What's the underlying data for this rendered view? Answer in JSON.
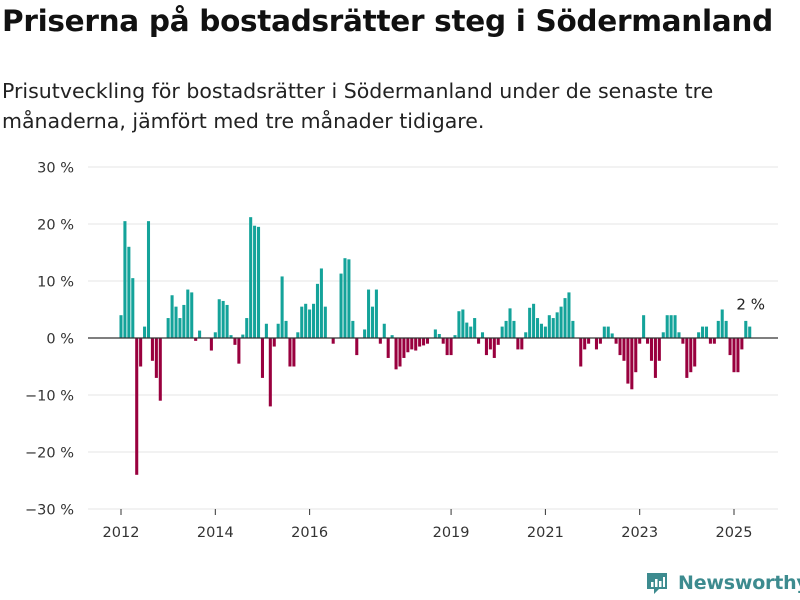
{
  "header": {
    "title": "Priserna på bostadsrätter steg i Södermanland",
    "subtitle": "Prisutveckling för bostadsrätter i Södermanland under de senaste tre månaderna, jämfört med tre månader tidigare."
  },
  "brand": {
    "name": "Newsworthy",
    "color": "#3d8b8f"
  },
  "colors": {
    "positive": "#14a39a",
    "negative": "#99003e",
    "grid": "#e6e6e6",
    "zero": "#333333"
  },
  "chart_data": {
    "type": "bar",
    "title": "",
    "xlabel": "",
    "ylabel": "",
    "ylim": [
      -30,
      30
    ],
    "y_ticks": [
      -30,
      -20,
      -10,
      0,
      10,
      20,
      30
    ],
    "y_tick_labels": [
      "−30 %",
      "−20 %",
      "−10 %",
      "0 %",
      "10 %",
      "20 %",
      "30 %"
    ],
    "x_ticks": [
      2012,
      2014,
      2016,
      2019,
      2021,
      2023,
      2025
    ],
    "x_tick_labels": [
      "2012",
      "2014",
      "2016",
      "2019",
      "2021",
      "2023",
      "2025"
    ],
    "grid": true,
    "annotation": {
      "text": "2 %",
      "value": 2
    },
    "series": [
      {
        "start": "2012-01",
        "frequency": "monthly",
        "values": [
          4.0,
          20.5,
          16.0,
          10.5,
          -24.0,
          -5.0,
          2.0,
          20.5,
          -4.0,
          -7.0,
          -11.0,
          0,
          3.5,
          7.5,
          5.5,
          3.5,
          5.8,
          8.5,
          8.0,
          -0.5,
          1.3,
          0,
          0,
          -2.2,
          1.0,
          6.8,
          6.5,
          5.8,
          0.5,
          -1.2,
          -4.5,
          0.6,
          3.5,
          21.2,
          19.7,
          19.5,
          -7.0,
          2.5,
          -12.0,
          -1.5,
          2.5,
          10.8,
          3.0,
          -5.0,
          -5.0,
          1.0,
          5.5,
          6.0,
          5.0,
          6.0,
          9.5,
          12.2,
          5.5,
          0,
          -1.0,
          0,
          11.3,
          14.0,
          13.8,
          3.0,
          -3.0,
          0,
          1.5,
          8.5,
          5.5,
          8.5,
          -1.0,
          2.5,
          -3.5,
          0.5,
          -5.5,
          -5.0,
          -3.5,
          -2.5,
          -2.0,
          -2.2,
          -1.5,
          -1.3,
          -1.0,
          0,
          1.5,
          0.7,
          -1.0,
          -3.0,
          -3.0,
          0.5,
          4.7,
          5.0,
          2.7,
          2.0,
          3.5,
          -1.0,
          1.0,
          -3.0,
          -2.0,
          -3.5,
          -1.2,
          2.0,
          3.0,
          5.2,
          3.0,
          -2.0,
          -2.0,
          1.0,
          5.3,
          6.0,
          3.5,
          2.5,
          2.0,
          4.0,
          3.5,
          4.5,
          5.5,
          7.0,
          8.0,
          3.0,
          0,
          -5.0,
          -2.0,
          -1.0,
          0,
          -2.0,
          -1.0,
          2.0,
          2.0,
          0.8,
          -1.0,
          -3.0,
          -4.0,
          -8.0,
          -9.0,
          -6.0,
          -1.0,
          4.0,
          -1.0,
          -4.0,
          -7.0,
          -4.0,
          1.0,
          4.0,
          4.0,
          4.0,
          1.0,
          -1.0,
          -7.0,
          -6.0,
          -5.0,
          1.0,
          2.0,
          2.0,
          -1.0,
          -1.0,
          3.0,
          5.0,
          3.0,
          -3.0,
          -6.0,
          -6.0,
          -2.0,
          3.0,
          2.0
        ]
      }
    ]
  }
}
